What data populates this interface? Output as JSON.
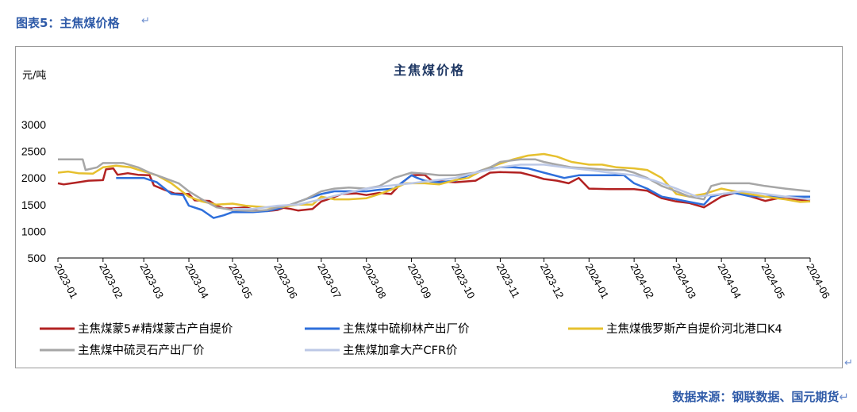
{
  "figure_caption": "图表5：主焦煤价格",
  "source_note": "数据来源：钢联数据、国元期货",
  "return_mark": "↵",
  "chart_data": {
    "type": "line",
    "title": "主焦煤价格",
    "ylabel": "元/吨",
    "xlabel": "",
    "ylim": [
      500,
      3000
    ],
    "yticks": [
      500,
      1000,
      1500,
      2000,
      2500,
      3000
    ],
    "xlim": [
      "2023-01",
      "2024-06"
    ],
    "x_tick_labels": [
      "2023-01",
      "2023-02",
      "2023-03",
      "2023-04",
      "2023-05",
      "2023-06",
      "2023-07",
      "2023-08",
      "2023-09",
      "2023-10",
      "2023-11",
      "2023-12",
      "2024-01",
      "2024-02",
      "2024-03",
      "2024-04",
      "2024-05",
      "2024-06"
    ],
    "grid": false,
    "legend_position": "bottom",
    "series": [
      {
        "name": "主焦煤蒙5#精煤蒙古产自提价",
        "color": "#B22222",
        "points": [
          [
            "2023-01-01",
            1900
          ],
          [
            "2023-01-05",
            1880
          ],
          [
            "2023-01-15",
            1920
          ],
          [
            "2023-01-22",
            1950
          ],
          [
            "2023-02-01",
            1960
          ],
          [
            "2023-02-03",
            2160
          ],
          [
            "2023-02-08",
            2180
          ],
          [
            "2023-02-11",
            2060
          ],
          [
            "2023-02-18",
            2090
          ],
          [
            "2023-02-25",
            2060
          ],
          [
            "2023-03-05",
            2050
          ],
          [
            "2023-03-08",
            1860
          ],
          [
            "2023-03-15",
            1780
          ],
          [
            "2023-03-22",
            1710
          ],
          [
            "2023-04-01",
            1700
          ],
          [
            "2023-04-05",
            1580
          ],
          [
            "2023-04-15",
            1570
          ],
          [
            "2023-04-20",
            1480
          ],
          [
            "2023-04-25",
            1430
          ],
          [
            "2023-05-01",
            1430
          ],
          [
            "2023-05-10",
            1450
          ],
          [
            "2023-05-18",
            1390
          ],
          [
            "2023-05-25",
            1380
          ],
          [
            "2023-06-01",
            1400
          ],
          [
            "2023-06-05",
            1440
          ],
          [
            "2023-06-10",
            1420
          ],
          [
            "2023-06-15",
            1390
          ],
          [
            "2023-06-25",
            1420
          ],
          [
            "2023-07-01",
            1560
          ],
          [
            "2023-07-08",
            1620
          ],
          [
            "2023-07-15",
            1700
          ],
          [
            "2023-07-25",
            1710
          ],
          [
            "2023-08-01",
            1680
          ],
          [
            "2023-08-10",
            1720
          ],
          [
            "2023-08-18",
            1700
          ],
          [
            "2023-08-25",
            1900
          ],
          [
            "2023-09-01",
            2050
          ],
          [
            "2023-09-10",
            2060
          ],
          [
            "2023-09-15",
            1950
          ],
          [
            "2023-09-25",
            1930
          ],
          [
            "2023-10-01",
            1920
          ],
          [
            "2023-10-15",
            1950
          ],
          [
            "2023-10-25",
            2100
          ],
          [
            "2023-11-01",
            2110
          ],
          [
            "2023-11-15",
            2100
          ],
          [
            "2023-11-25",
            2030
          ],
          [
            "2023-12-01",
            1980
          ],
          [
            "2023-12-10",
            1950
          ],
          [
            "2023-12-18",
            1900
          ],
          [
            "2023-12-25",
            2000
          ],
          [
            "2024-01-01",
            1800
          ],
          [
            "2024-01-15",
            1790
          ],
          [
            "2024-01-25",
            1790
          ],
          [
            "2024-02-01",
            1790
          ],
          [
            "2024-02-10",
            1760
          ],
          [
            "2024-02-20",
            1620
          ],
          [
            "2024-03-01",
            1560
          ],
          [
            "2024-03-10",
            1530
          ],
          [
            "2024-03-20",
            1450
          ],
          [
            "2024-04-01",
            1650
          ],
          [
            "2024-04-10",
            1720
          ],
          [
            "2024-04-18",
            1680
          ],
          [
            "2024-04-25",
            1620
          ],
          [
            "2024-05-01",
            1570
          ],
          [
            "2024-05-10",
            1620
          ],
          [
            "2024-05-20",
            1600
          ],
          [
            "2024-06-01",
            1580
          ]
        ]
      },
      {
        "name": "主焦煤中硫柳林产出厂价",
        "color": "#2E6FDB",
        "points": [
          [
            "2023-02-10",
            2000
          ],
          [
            "2023-03-01",
            2000
          ],
          [
            "2023-03-10",
            1920
          ],
          [
            "2023-03-20",
            1700
          ],
          [
            "2023-03-28",
            1680
          ],
          [
            "2023-04-01",
            1480
          ],
          [
            "2023-04-10",
            1400
          ],
          [
            "2023-04-18",
            1250
          ],
          [
            "2023-04-25",
            1300
          ],
          [
            "2023-05-01",
            1360
          ],
          [
            "2023-05-15",
            1360
          ],
          [
            "2023-05-25",
            1380
          ],
          [
            "2023-06-01",
            1420
          ],
          [
            "2023-06-10",
            1500
          ],
          [
            "2023-06-20",
            1600
          ],
          [
            "2023-07-01",
            1700
          ],
          [
            "2023-07-10",
            1750
          ],
          [
            "2023-07-20",
            1750
          ],
          [
            "2023-08-01",
            1750
          ],
          [
            "2023-08-10",
            1780
          ],
          [
            "2023-08-20",
            1800
          ],
          [
            "2023-09-01",
            2050
          ],
          [
            "2023-09-05",
            2000
          ],
          [
            "2023-09-10",
            1950
          ],
          [
            "2023-09-20",
            1920
          ],
          [
            "2023-10-01",
            1950
          ],
          [
            "2023-10-10",
            2050
          ],
          [
            "2023-10-20",
            2150
          ],
          [
            "2023-11-01",
            2200
          ],
          [
            "2023-11-10",
            2200
          ],
          [
            "2023-11-20",
            2180
          ],
          [
            "2023-12-01",
            2100
          ],
          [
            "2023-12-15",
            2000
          ],
          [
            "2023-12-25",
            2050
          ],
          [
            "2024-01-01",
            2050
          ],
          [
            "2024-01-15",
            2050
          ],
          [
            "2024-01-25",
            2050
          ],
          [
            "2024-02-01",
            1900
          ],
          [
            "2024-02-10",
            1800
          ],
          [
            "2024-02-20",
            1650
          ],
          [
            "2024-03-01",
            1600
          ],
          [
            "2024-03-10",
            1550
          ],
          [
            "2024-03-20",
            1500
          ],
          [
            "2024-03-25",
            1650
          ],
          [
            "2024-04-01",
            1700
          ],
          [
            "2024-04-10",
            1720
          ],
          [
            "2024-04-20",
            1660
          ],
          [
            "2024-05-01",
            1650
          ],
          [
            "2024-05-15",
            1650
          ],
          [
            "2024-06-01",
            1650
          ]
        ]
      },
      {
        "name": "主焦煤俄罗斯产自提价河北港口K4",
        "color": "#E6C02E",
        "points": [
          [
            "2023-01-01",
            2100
          ],
          [
            "2023-01-08",
            2120
          ],
          [
            "2023-01-15",
            2090
          ],
          [
            "2023-01-25",
            2080
          ],
          [
            "2023-02-01",
            2200
          ],
          [
            "2023-02-10",
            2230
          ],
          [
            "2023-02-20",
            2200
          ],
          [
            "2023-03-01",
            2120
          ],
          [
            "2023-03-10",
            2050
          ],
          [
            "2023-03-20",
            1900
          ],
          [
            "2023-04-01",
            1650
          ],
          [
            "2023-04-10",
            1560
          ],
          [
            "2023-04-20",
            1500
          ],
          [
            "2023-05-01",
            1520
          ],
          [
            "2023-05-10",
            1480
          ],
          [
            "2023-05-25",
            1450
          ],
          [
            "2023-06-05",
            1460
          ],
          [
            "2023-06-15",
            1500
          ],
          [
            "2023-06-25",
            1500
          ],
          [
            "2023-07-01",
            1650
          ],
          [
            "2023-07-10",
            1600
          ],
          [
            "2023-07-20",
            1600
          ],
          [
            "2023-08-01",
            1620
          ],
          [
            "2023-08-10",
            1700
          ],
          [
            "2023-08-20",
            1800
          ],
          [
            "2023-08-28",
            1900
          ],
          [
            "2023-09-10",
            1900
          ],
          [
            "2023-09-20",
            1880
          ],
          [
            "2023-10-01",
            1960
          ],
          [
            "2023-10-10",
            2000
          ],
          [
            "2023-10-20",
            2150
          ],
          [
            "2023-11-01",
            2270
          ],
          [
            "2023-11-10",
            2350
          ],
          [
            "2023-11-20",
            2420
          ],
          [
            "2023-12-01",
            2450
          ],
          [
            "2023-12-10",
            2400
          ],
          [
            "2023-12-20",
            2300
          ],
          [
            "2024-01-01",
            2250
          ],
          [
            "2024-01-10",
            2250
          ],
          [
            "2024-01-20",
            2200
          ],
          [
            "2024-02-01",
            2180
          ],
          [
            "2024-02-10",
            2150
          ],
          [
            "2024-02-20",
            2000
          ],
          [
            "2024-03-01",
            1700
          ],
          [
            "2024-03-10",
            1650
          ],
          [
            "2024-03-20",
            1700
          ],
          [
            "2024-04-01",
            1800
          ],
          [
            "2024-04-10",
            1750
          ],
          [
            "2024-04-20",
            1700
          ],
          [
            "2024-05-01",
            1650
          ],
          [
            "2024-05-15",
            1600
          ],
          [
            "2024-05-25",
            1550
          ],
          [
            "2024-06-01",
            1560
          ]
        ]
      },
      {
        "name": "主焦煤中硫灵石产出厂价",
        "color": "#A6A6A6",
        "points": [
          [
            "2023-01-01",
            2350
          ],
          [
            "2023-01-10",
            2350
          ],
          [
            "2023-01-18",
            2350
          ],
          [
            "2023-01-20",
            2150
          ],
          [
            "2023-01-28",
            2200
          ],
          [
            "2023-02-01",
            2280
          ],
          [
            "2023-02-15",
            2280
          ],
          [
            "2023-02-25",
            2200
          ],
          [
            "2023-03-05",
            2100
          ],
          [
            "2023-03-15",
            2000
          ],
          [
            "2023-03-25",
            1900
          ],
          [
            "2023-04-01",
            1750
          ],
          [
            "2023-04-10",
            1600
          ],
          [
            "2023-04-20",
            1450
          ],
          [
            "2023-05-01",
            1400
          ],
          [
            "2023-05-15",
            1380
          ],
          [
            "2023-05-25",
            1400
          ],
          [
            "2023-06-01",
            1450
          ],
          [
            "2023-06-10",
            1500
          ],
          [
            "2023-06-20",
            1600
          ],
          [
            "2023-07-01",
            1750
          ],
          [
            "2023-07-10",
            1800
          ],
          [
            "2023-07-20",
            1820
          ],
          [
            "2023-08-01",
            1800
          ],
          [
            "2023-08-10",
            1850
          ],
          [
            "2023-08-20",
            2000
          ],
          [
            "2023-09-01",
            2100
          ],
          [
            "2023-09-10",
            2080
          ],
          [
            "2023-09-20",
            2050
          ],
          [
            "2023-10-01",
            2050
          ],
          [
            "2023-10-15",
            2100
          ],
          [
            "2023-10-25",
            2200
          ],
          [
            "2023-11-01",
            2300
          ],
          [
            "2023-11-15",
            2350
          ],
          [
            "2023-11-25",
            2350
          ],
          [
            "2023-12-01",
            2300
          ],
          [
            "2023-12-10",
            2250
          ],
          [
            "2023-12-20",
            2200
          ],
          [
            "2024-01-01",
            2180
          ],
          [
            "2024-01-15",
            2150
          ],
          [
            "2024-01-25",
            2150
          ],
          [
            "2024-02-01",
            2100
          ],
          [
            "2024-02-10",
            2000
          ],
          [
            "2024-02-20",
            1850
          ],
          [
            "2024-03-01",
            1750
          ],
          [
            "2024-03-10",
            1650
          ],
          [
            "2024-03-20",
            1600
          ],
          [
            "2024-03-25",
            1850
          ],
          [
            "2024-04-01",
            1900
          ],
          [
            "2024-04-10",
            1900
          ],
          [
            "2024-04-20",
            1900
          ],
          [
            "2024-05-01",
            1850
          ],
          [
            "2024-05-15",
            1800
          ],
          [
            "2024-06-01",
            1750
          ]
        ]
      },
      {
        "name": "主焦煤加拿大产CFR价",
        "color": "#BCC8E6",
        "points": [
          [
            "2023-05-01",
            1420
          ],
          [
            "2023-05-15",
            1420
          ],
          [
            "2023-06-01",
            1480
          ],
          [
            "2023-06-15",
            1500
          ],
          [
            "2023-07-01",
            1600
          ],
          [
            "2023-07-15",
            1700
          ],
          [
            "2023-08-01",
            1800
          ],
          [
            "2023-08-15",
            1850
          ],
          [
            "2023-09-01",
            1900
          ],
          [
            "2023-09-15",
            1950
          ],
          [
            "2023-10-01",
            2000
          ],
          [
            "2023-10-15",
            2100
          ],
          [
            "2023-11-01",
            2200
          ],
          [
            "2023-11-15",
            2250
          ],
          [
            "2023-12-01",
            2250
          ],
          [
            "2023-12-15",
            2200
          ],
          [
            "2024-01-01",
            2150
          ],
          [
            "2024-01-15",
            2100
          ],
          [
            "2024-02-01",
            2050
          ],
          [
            "2024-02-15",
            1950
          ],
          [
            "2024-03-01",
            1800
          ],
          [
            "2024-03-15",
            1650
          ],
          [
            "2024-04-01",
            1700
          ],
          [
            "2024-04-15",
            1750
          ],
          [
            "2024-05-01",
            1700
          ],
          [
            "2024-05-15",
            1650
          ],
          [
            "2024-06-01",
            1600
          ]
        ]
      }
    ]
  }
}
